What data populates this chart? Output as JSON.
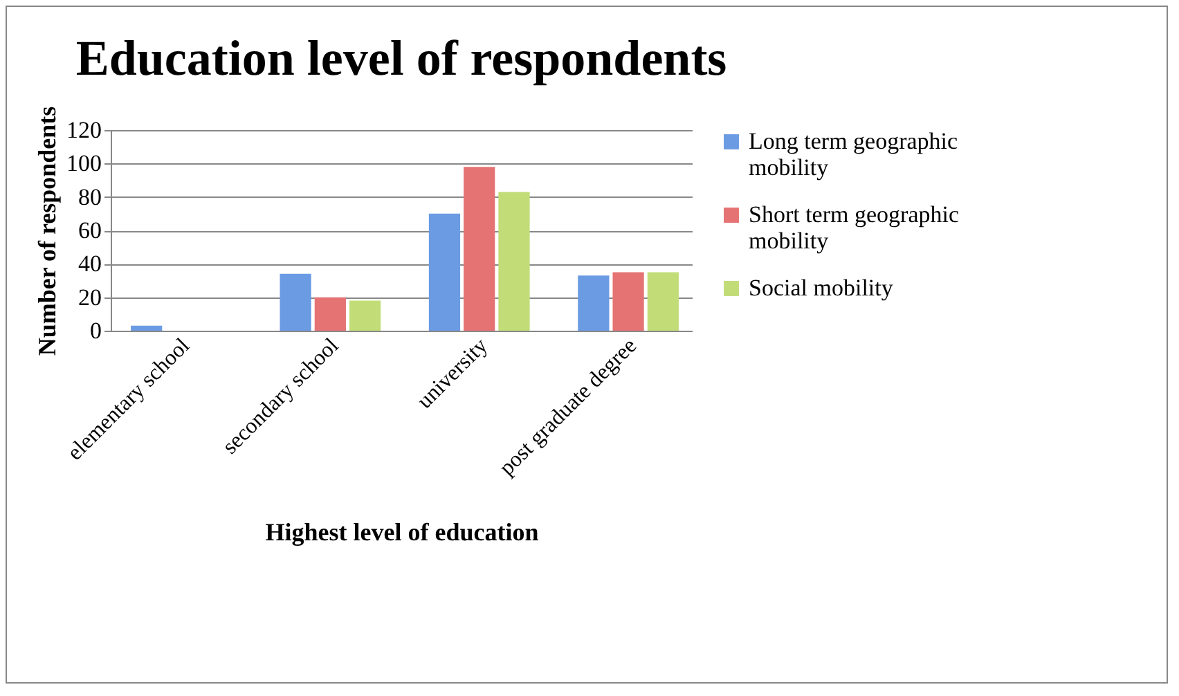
{
  "chart_data": {
    "type": "bar",
    "title": "Education level of respondents",
    "xlabel": "Highest level of education",
    "ylabel": "Number of respondents",
    "categories": [
      "elementary school",
      "secondary school",
      "university",
      "post graduate degree"
    ],
    "series": [
      {
        "name": "Long term geographic mobility",
        "color": "#6b9be3",
        "values": [
          3,
          34,
          70,
          33
        ]
      },
      {
        "name": "Short term geographic mobility",
        "color": "#e57373",
        "values": [
          0,
          20,
          98,
          35
        ]
      },
      {
        "name": "Social mobility",
        "color": "#c2dd78",
        "values": [
          0,
          18,
          83,
          35
        ]
      }
    ],
    "ylim": [
      0,
      120
    ],
    "yticks": [
      0,
      20,
      40,
      60,
      80,
      100,
      120
    ],
    "grid": "y",
    "legend": "right"
  }
}
